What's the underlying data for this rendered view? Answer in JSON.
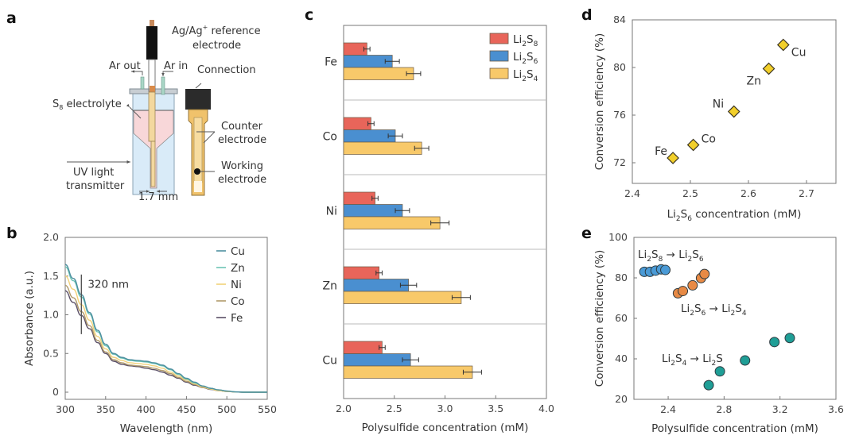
{
  "panels": {
    "a": {
      "label": "a",
      "annotations": {
        "ref_electrode_1": "Ag/Ag",
        "ref_electrode_sup": "+",
        "ref_electrode_2": " reference",
        "ref_electrode_3": "electrode",
        "ar_out": "Ar out",
        "ar_in": "Ar in",
        "connection": "Connection",
        "s8_prefix": "S",
        "s8_sub": "8",
        "s8_suffix": " electrolyte",
        "counter_1": "Counter",
        "counter_2": "electrode",
        "uv_1": "UV light",
        "uv_2": "transmitter",
        "working_1": "Working",
        "working_2": "electrode",
        "gap": "1.7 mm"
      }
    },
    "b": {
      "label": "b"
    },
    "c": {
      "label": "c"
    },
    "d": {
      "label": "d"
    },
    "e": {
      "label": "e"
    }
  },
  "colors": {
    "li2s8": "#e8655a",
    "li2s6": "#4a8fd0",
    "li2s4": "#f8c96a",
    "diamond": "#f2cf2a",
    "blue_dot": "#4a9ad6",
    "orange_dot": "#e88a45",
    "teal_dot": "#1f9e96",
    "Cu": "#4e8fa0",
    "Zn": "#6cc4b4",
    "Ni": "#f2d27a",
    "Co": "#b09a6a",
    "Fe": "#5a4f66"
  },
  "chart_data": [
    {
      "panel": "b",
      "type": "line",
      "title": "",
      "xlabel": "Wavelength (nm)",
      "ylabel": "Absorbance (a.u.)",
      "xlim": [
        300,
        550
      ],
      "ylim": [
        -0.07,
        2.0
      ],
      "xticks": [
        300,
        350,
        400,
        450,
        500,
        550
      ],
      "yticks": [
        0,
        0.5,
        1.0,
        1.5,
        2.0
      ],
      "ytick_labels": [
        "0",
        "0.5",
        "1.0",
        "1.5",
        "2.0"
      ],
      "legend_position": "top-right",
      "annotation": {
        "text": "320 nm",
        "x": 320,
        "y_range": [
          0.75,
          1.52
        ]
      },
      "x": [
        300,
        310,
        320,
        330,
        340,
        350,
        360,
        370,
        380,
        390,
        400,
        410,
        420,
        430,
        440,
        450,
        460,
        470,
        480,
        490,
        500,
        510,
        520,
        530,
        540,
        550
      ],
      "series": [
        {
          "name": "Cu",
          "values": [
            1.65,
            1.47,
            1.26,
            1.03,
            0.8,
            0.62,
            0.5,
            0.45,
            0.42,
            0.41,
            0.4,
            0.38,
            0.35,
            0.3,
            0.24,
            0.18,
            0.13,
            0.08,
            0.05,
            0.03,
            0.015,
            0.005,
            0.0,
            0.0,
            0.0,
            0.0
          ]
        },
        {
          "name": "Zn",
          "values": [
            1.62,
            1.44,
            1.23,
            1.01,
            0.78,
            0.6,
            0.49,
            0.44,
            0.41,
            0.4,
            0.39,
            0.37,
            0.34,
            0.29,
            0.23,
            0.17,
            0.12,
            0.08,
            0.05,
            0.03,
            0.015,
            0.005,
            0.0,
            0.0,
            0.0,
            0.0
          ]
        },
        {
          "name": "Ni",
          "values": [
            1.5,
            1.33,
            1.13,
            0.93,
            0.72,
            0.56,
            0.45,
            0.41,
            0.38,
            0.37,
            0.36,
            0.34,
            0.31,
            0.26,
            0.21,
            0.16,
            0.11,
            0.07,
            0.04,
            0.02,
            0.01,
            0.003,
            0.0,
            0.0,
            0.0,
            0.0
          ]
        },
        {
          "name": "Co",
          "values": [
            1.38,
            1.22,
            1.04,
            0.86,
            0.67,
            0.52,
            0.42,
            0.38,
            0.35,
            0.34,
            0.33,
            0.31,
            0.28,
            0.24,
            0.19,
            0.14,
            0.1,
            0.06,
            0.04,
            0.02,
            0.01,
            0.003,
            0.0,
            0.0,
            0.0,
            0.0
          ]
        },
        {
          "name": "Fe",
          "values": [
            1.31,
            1.16,
            0.99,
            0.82,
            0.64,
            0.5,
            0.4,
            0.36,
            0.34,
            0.33,
            0.31,
            0.29,
            0.26,
            0.22,
            0.18,
            0.13,
            0.09,
            0.06,
            0.035,
            0.02,
            0.01,
            0.003,
            0.0,
            0.0,
            0.0,
            0.0
          ]
        }
      ]
    },
    {
      "panel": "c",
      "type": "bar",
      "orientation": "horizontal",
      "title": "",
      "xlabel": "Polysulfide concentration (mM)",
      "ylabel": "",
      "xlim": [
        2.0,
        4.0
      ],
      "xticks": [
        2.0,
        2.5,
        3.0,
        3.5,
        4.0
      ],
      "xtick_labels": [
        "2.0",
        "2.5",
        "3.0",
        "3.5",
        "4.0"
      ],
      "categories": [
        "Fe",
        "Co",
        "Ni",
        "Zn",
        "Cu"
      ],
      "legend_position": "top-right",
      "series": [
        {
          "name": "Li2S8",
          "label_main": "Li",
          "label_sub1": "2",
          "label_mid": "S",
          "label_sub2": "8",
          "values": [
            2.23,
            2.27,
            2.31,
            2.35,
            2.38
          ],
          "errors": [
            0.03,
            0.03,
            0.03,
            0.03,
            0.03
          ]
        },
        {
          "name": "Li2S6",
          "label_main": "Li",
          "label_sub1": "2",
          "label_mid": "S",
          "label_sub2": "6",
          "values": [
            2.48,
            2.51,
            2.58,
            2.64,
            2.66
          ],
          "errors": [
            0.07,
            0.07,
            0.07,
            0.08,
            0.08
          ]
        },
        {
          "name": "Li2S4",
          "label_main": "Li",
          "label_sub1": "2",
          "label_mid": "S",
          "label_sub2": "4",
          "values": [
            2.69,
            2.77,
            2.95,
            3.16,
            3.27
          ],
          "errors": [
            0.07,
            0.07,
            0.09,
            0.09,
            0.09
          ]
        }
      ]
    },
    {
      "panel": "d",
      "type": "scatter",
      "title": "",
      "xlabel_main": "Li",
      "xlabel_sub1": "2",
      "xlabel_mid": "S",
      "xlabel_sub2": "6",
      "xlabel_rest": " concentration (mM)",
      "ylabel": "Conversion efficiency (%)",
      "xlim": [
        2.4,
        2.75
      ],
      "ylim": [
        70.2,
        84
      ],
      "xticks": [
        2.4,
        2.5,
        2.6,
        2.7
      ],
      "xtick_labels": [
        "2.4",
        "2.5",
        "2.6",
        "2.7"
      ],
      "yticks": [
        72,
        76,
        80,
        84
      ],
      "ytick_labels": [
        "72",
        "76",
        "80",
        "84"
      ],
      "points": [
        {
          "label": "Fe",
          "x": 2.47,
          "y": 72.4
        },
        {
          "label": "Co",
          "x": 2.505,
          "y": 73.5
        },
        {
          "label": "Ni",
          "x": 2.575,
          "y": 76.3
        },
        {
          "label": "Zn",
          "x": 2.635,
          "y": 79.9
        },
        {
          "label": "Cu",
          "x": 2.66,
          "y": 81.9
        }
      ]
    },
    {
      "panel": "e",
      "type": "scatter",
      "title": "",
      "xlabel": "Polysulfide concentration (mM)",
      "ylabel": "Conversion efficiency (%)",
      "xlim": [
        2.155,
        3.6
      ],
      "ylim": [
        20,
        100
      ],
      "xticks": [
        2.4,
        2.8,
        3.2,
        3.6
      ],
      "xtick_labels": [
        "2.4",
        "2.8",
        "3.2",
        "3.6"
      ],
      "yticks": [
        20,
        40,
        60,
        80,
        100
      ],
      "ytick_labels": [
        "20",
        "40",
        "60",
        "80",
        "100"
      ],
      "series": [
        {
          "name": "Li2S8 → Li2S6",
          "a_sub": "8",
          "b_sub": "6",
          "b_tail": "6",
          "points": [
            [
              2.23,
              83
            ],
            [
              2.27,
              83
            ],
            [
              2.31,
              83.6
            ],
            [
              2.35,
              84.2
            ],
            [
              2.38,
              83.9
            ]
          ]
        },
        {
          "name": "Li2S6 → Li2S4",
          "a_sub": "6",
          "b_sub": "4",
          "points": [
            [
              2.47,
              72.4
            ],
            [
              2.505,
              73.5
            ],
            [
              2.575,
              76.3
            ],
            [
              2.635,
              79.9
            ],
            [
              2.66,
              81.9
            ]
          ]
        },
        {
          "name": "Li2S4 → Li2S",
          "a_sub": "4",
          "b_sub": "",
          "points": [
            [
              2.69,
              27
            ],
            [
              2.77,
              33.8
            ],
            [
              2.95,
              39.2
            ],
            [
              3.16,
              48.3
            ],
            [
              3.27,
              50.3
            ]
          ]
        }
      ]
    }
  ]
}
